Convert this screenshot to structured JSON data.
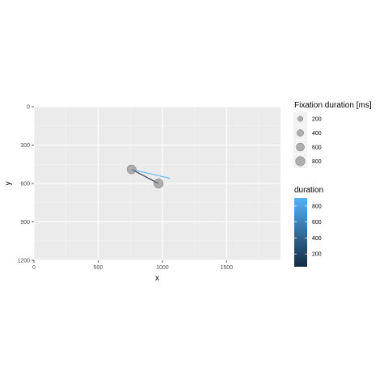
{
  "chart_data": {
    "type": "scatter",
    "xlabel": "x",
    "ylabel": "y",
    "xlim": [
      0,
      1920
    ],
    "ylim": [
      0,
      1200
    ],
    "y_reversed": true,
    "x_ticks": [
      0,
      500,
      1000,
      1500
    ],
    "x_tick_labels": [
      "0",
      "500",
      "1000",
      "1500"
    ],
    "y_ticks": [
      0,
      300,
      600,
      900,
      1200
    ],
    "y_tick_labels": [
      "0",
      "300",
      "600",
      "900",
      "1200"
    ],
    "grid": true,
    "panel_background": "#ebebeb",
    "point_color": "#808080",
    "fixations": [
      {
        "x": 760,
        "y": 490,
        "duration": 750
      },
      {
        "x": 970,
        "y": 600,
        "duration": 800
      }
    ],
    "paths": [
      {
        "x": [
          760,
          970
        ],
        "y": [
          490,
          600
        ],
        "duration": 40
      },
      {
        "x": [
          760,
          1060
        ],
        "y": [
          490,
          560
        ],
        "duration": 900
      }
    ],
    "legends": {
      "placement": "right",
      "size_legend": {
        "title": "Fixation duration [ms]",
        "values": [
          200,
          400,
          600,
          800
        ],
        "labels": [
          "200",
          "400",
          "600",
          "800"
        ]
      },
      "color_legend": {
        "title": "duration",
        "range": [
          40,
          900
        ],
        "ticks": [
          200,
          400,
          600,
          800
        ],
        "tick_labels": [
          "200",
          "400",
          "600",
          "800"
        ],
        "low_color": "#132b43",
        "high_color": "#56b1f7"
      }
    }
  }
}
